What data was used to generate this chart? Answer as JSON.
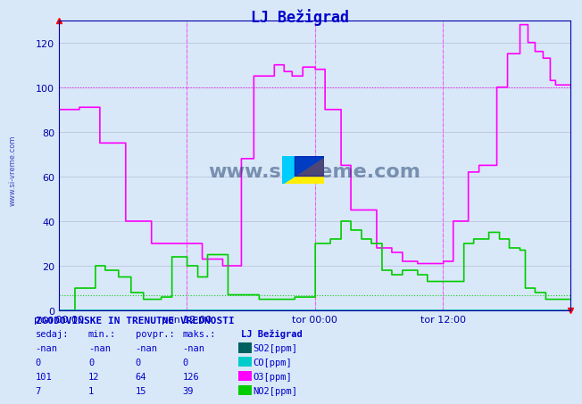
{
  "title": "LJ Bežigrad",
  "title_color": "#0000cc",
  "bg_color": "#d8e8f8",
  "plot_bg_color": "#d8e8f8",
  "grid_color": "#aaaacc",
  "ylim": [
    0,
    130
  ],
  "yticks": [
    0,
    20,
    40,
    60,
    80,
    100,
    120
  ],
  "xlabel_left": "pon 00:00",
  "xlabel_mid1": "pon 12:00",
  "xlabel_mid2": "tor 00:00",
  "xlabel_right": "tor 12:00",
  "num_points": 576,
  "o3_color": "#ff00ff",
  "no2_color": "#00cc00",
  "so2_color": "#006060",
  "co_color": "#00cccc",
  "hline_o3": 100,
  "hline_no2": 7,
  "vline_pos": 0.5,
  "watermark": "www.si-vreme.com",
  "table_header": "ZGODOVINSKE IN TRENUTNE VREDNOSTI",
  "table_cols": [
    "sedaj:",
    "min.:",
    "povpr.:",
    "maks.:"
  ],
  "table_data": [
    [
      "-nan",
      "-nan",
      "-nan",
      "-nan",
      "SO2[ppm]"
    ],
    [
      "0",
      "0",
      "0",
      "0",
      "CO[ppm]"
    ],
    [
      "101",
      "12",
      "64",
      "126",
      "O3[ppm]"
    ],
    [
      "7",
      "1",
      "15",
      "39",
      "NO2[ppm]"
    ]
  ],
  "legend_label": "LJ Bežigrad",
  "legend_colors": [
    "#006060",
    "#00cccc",
    "#ff00ff",
    "#00cc00"
  ],
  "legend_names": [
    "SO2[ppm]",
    "CO[ppm]",
    "O3[ppm]",
    "NO2[ppm]"
  ]
}
